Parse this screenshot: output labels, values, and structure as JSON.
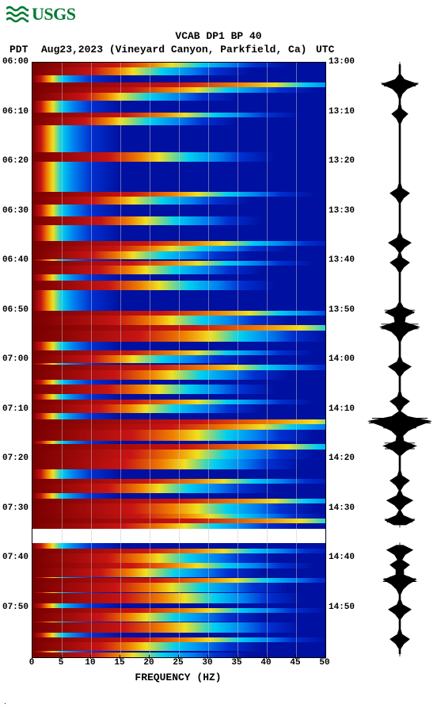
{
  "logo_text": "USGS",
  "logo_color": "#007a33",
  "title": "VCAB DP1 BP 40",
  "header": {
    "tz_left": "PDT",
    "date_location": "Aug23,2023 (Vineyard Canyon, Parkfield, Ca)",
    "tz_right": "UTC"
  },
  "axes": {
    "x_label": "FREQUENCY (HZ)",
    "x_lim": [
      0,
      50
    ],
    "x_ticks": [
      0,
      5,
      10,
      15,
      20,
      25,
      30,
      35,
      40,
      45,
      50
    ],
    "y_left_ticks": [
      "06:00",
      "06:10",
      "06:20",
      "06:30",
      "06:40",
      "06:50",
      "07:00",
      "07:10",
      "07:20",
      "07:30",
      "07:40",
      "07:50"
    ],
    "y_right_ticks": [
      "13:00",
      "13:10",
      "13:20",
      "13:30",
      "13:40",
      "13:50",
      "14:00",
      "14:10",
      "14:20",
      "14:30",
      "14:40",
      "14:50"
    ],
    "y_rows": 120,
    "tick_fontsize": 11,
    "label_fontsize": 13,
    "grid_color_v": "rgba(200,200,200,0.5)"
  },
  "palette": {
    "base_blue": "#0010a0",
    "mid_blue": "#0030d0",
    "lt_blue_cyan": "#0080f0",
    "cyan": "#00d0f0",
    "yellow": "#f0e020",
    "orange": "#f08000",
    "red": "#c81414",
    "dark_red": "#780000",
    "gap_white": "#ffffff"
  },
  "gap": {
    "start_row": 94,
    "end_row": 97
  },
  "spectrogram": {
    "type": "spectrogram",
    "width_bins": 50,
    "height_rows": 120,
    "note": "rows[] lists event rows — each has intensity (0-1) governing hot-color width and brightness; unlisted rows are quiet blue with faint low-freq warmth",
    "rows": [
      {
        "r": 0,
        "i": 0.45
      },
      {
        "r": 1,
        "i": 0.3
      },
      {
        "r": 4,
        "i": 0.85
      },
      {
        "r": 5,
        "i": 0.55
      },
      {
        "r": 6,
        "i": 0.25
      },
      {
        "r": 10,
        "i": 0.5
      },
      {
        "r": 11,
        "i": 0.25
      },
      {
        "r": 18,
        "i": 0.4
      },
      {
        "r": 26,
        "i": 0.55
      },
      {
        "r": 27,
        "i": 0.3
      },
      {
        "r": 31,
        "i": 0.35
      },
      {
        "r": 36,
        "i": 0.65
      },
      {
        "r": 37,
        "i": 0.45
      },
      {
        "r": 38,
        "i": 0.3
      },
      {
        "r": 40,
        "i": 0.55
      },
      {
        "r": 41,
        "i": 0.35
      },
      {
        "r": 44,
        "i": 0.4
      },
      {
        "r": 50,
        "i": 0.75
      },
      {
        "r": 51,
        "i": 0.45
      },
      {
        "r": 53,
        "i": 0.95
      },
      {
        "r": 54,
        "i": 0.6
      },
      {
        "r": 58,
        "i": 0.55
      },
      {
        "r": 59,
        "i": 0.3
      },
      {
        "r": 61,
        "i": 0.7
      },
      {
        "r": 62,
        "i": 0.45
      },
      {
        "r": 65,
        "i": 0.4
      },
      {
        "r": 68,
        "i": 0.55
      },
      {
        "r": 69,
        "i": 0.35
      },
      {
        "r": 72,
        "i": 1.0
      },
      {
        "r": 73,
        "i": 0.8
      },
      {
        "r": 74,
        "i": 0.55
      },
      {
        "r": 77,
        "i": 0.9
      },
      {
        "r": 78,
        "i": 0.55
      },
      {
        "r": 80,
        "i": 0.5
      },
      {
        "r": 84,
        "i": 0.65
      },
      {
        "r": 85,
        "i": 0.4
      },
      {
        "r": 88,
        "i": 0.85
      },
      {
        "r": 89,
        "i": 0.55
      },
      {
        "r": 91,
        "i": 0.6
      },
      {
        "r": 92,
        "i": 0.95
      },
      {
        "r": 93,
        "i": 0.5
      },
      {
        "r": 98,
        "i": 0.65
      },
      {
        "r": 99,
        "i": 0.4
      },
      {
        "r": 101,
        "i": 0.55
      },
      {
        "r": 102,
        "i": 0.35
      },
      {
        "r": 104,
        "i": 0.7
      },
      {
        "r": 105,
        "i": 0.45
      },
      {
        "r": 107,
        "i": 0.5
      },
      {
        "r": 110,
        "i": 0.6
      },
      {
        "r": 111,
        "i": 0.35
      },
      {
        "r": 113,
        "i": 0.5
      },
      {
        "r": 116,
        "i": 0.6
      },
      {
        "r": 117,
        "i": 0.35
      },
      {
        "r": 119,
        "i": 0.3
      }
    ]
  },
  "seismogram": {
    "type": "waveform",
    "color": "#000000",
    "baseline_x": 45,
    "gap": {
      "start_row": 94,
      "end_row": 97
    },
    "events": [
      {
        "r": 4,
        "a": 0.55
      },
      {
        "r": 5,
        "a": 0.2
      },
      {
        "r": 10,
        "a": 0.25
      },
      {
        "r": 26,
        "a": 0.3
      },
      {
        "r": 36,
        "a": 0.35
      },
      {
        "r": 40,
        "a": 0.3
      },
      {
        "r": 50,
        "a": 0.45
      },
      {
        "r": 53,
        "a": 0.6
      },
      {
        "r": 54,
        "a": 0.25
      },
      {
        "r": 61,
        "a": 0.35
      },
      {
        "r": 68,
        "a": 0.3
      },
      {
        "r": 72,
        "a": 0.95
      },
      {
        "r": 73,
        "a": 0.55
      },
      {
        "r": 74,
        "a": 0.25
      },
      {
        "r": 77,
        "a": 0.5
      },
      {
        "r": 84,
        "a": 0.3
      },
      {
        "r": 88,
        "a": 0.4
      },
      {
        "r": 92,
        "a": 0.45
      },
      {
        "r": 98,
        "a": 0.4
      },
      {
        "r": 101,
        "a": 0.3
      },
      {
        "r": 104,
        "a": 0.5
      },
      {
        "r": 105,
        "a": 0.25
      },
      {
        "r": 110,
        "a": 0.35
      },
      {
        "r": 116,
        "a": 0.3
      }
    ]
  }
}
